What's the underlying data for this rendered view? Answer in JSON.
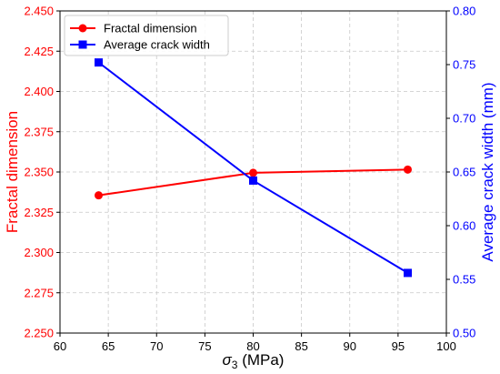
{
  "chart_data": {
    "type": "line",
    "title": "",
    "xlabel_symbol": "σ",
    "xlabel_subscript": "3",
    "xlabel_unit": " (MPa)",
    "ylabel_left": "Fractal dimension",
    "ylabel_right": "Average crack width (mm)",
    "xlim": [
      60,
      100
    ],
    "ylim_left": [
      2.25,
      2.45
    ],
    "ylim_right": [
      0.5,
      0.8
    ],
    "x_ticks": [
      "60",
      "65",
      "70",
      "75",
      "80",
      "85",
      "90",
      "95",
      "100"
    ],
    "y_ticks_left": [
      "2.250",
      "2.275",
      "2.300",
      "2.325",
      "2.350",
      "2.375",
      "2.400",
      "2.425",
      "2.450"
    ],
    "y_ticks_right": [
      "0.50",
      "0.55",
      "0.60",
      "0.65",
      "0.70",
      "0.75",
      "0.80"
    ],
    "grid": true,
    "legend_position": "top-left",
    "series": [
      {
        "name": "Fractal dimension",
        "axis": "left",
        "color": "#ff0000",
        "marker": "circle",
        "x": [
          64,
          80,
          96
        ],
        "y": [
          2.3355,
          2.3495,
          2.3515
        ]
      },
      {
        "name": "Average crack width",
        "axis": "right",
        "color": "#0000ff",
        "marker": "square",
        "x": [
          64,
          80,
          96
        ],
        "y": [
          0.752,
          0.642,
          0.556
        ]
      }
    ]
  }
}
